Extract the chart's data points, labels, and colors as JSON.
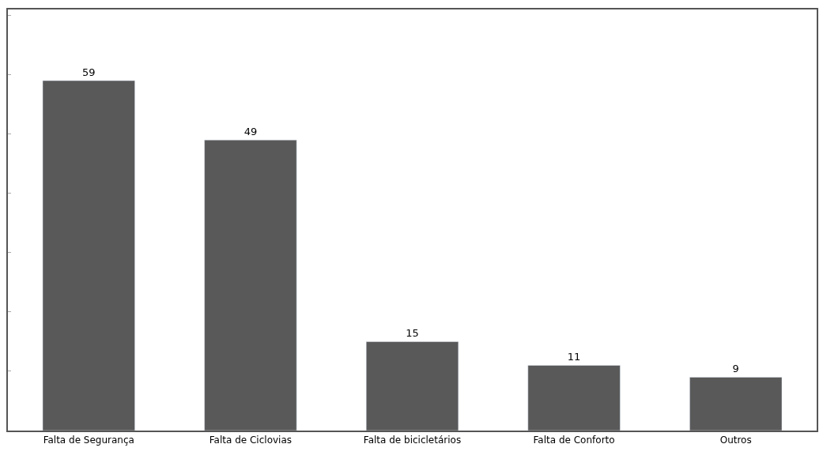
{
  "chart_data": {
    "type": "bar",
    "categories": [
      "Falta de Segurança",
      "Falta de Ciclovias",
      "Falta de bicicletários",
      "Falta de Conforto",
      "Outros"
    ],
    "values": [
      59,
      49,
      15,
      11,
      9
    ],
    "color": "#595959",
    "data_labels": true,
    "ylim": [
      0,
      71
    ],
    "yticks": [
      {
        "value": 0,
        "label": null
      },
      {
        "value": 10,
        "label": null
      },
      {
        "value": 20,
        "label": null
      },
      {
        "value": 30,
        "label": null
      },
      {
        "value": 40,
        "label": null
      },
      {
        "value": 50,
        "label": null
      },
      {
        "value": 60,
        "label": null
      },
      {
        "value": 70,
        "label": null
      }
    ],
    "legend": false
  }
}
